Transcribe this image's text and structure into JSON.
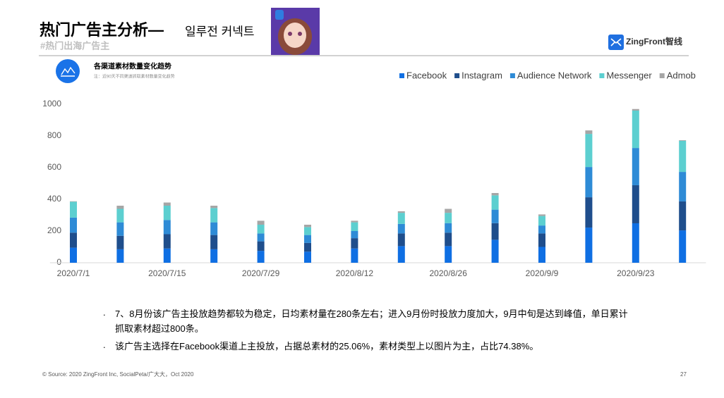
{
  "slide": {
    "title": "热门广告主分析—",
    "title_suffix": "일루전 커넥트",
    "subtitle": "#热门出海广告主",
    "logo": "ZingFront智线",
    "chart_heading": "各渠道素材数量变化趋势",
    "chart_note": "注：近90天不同渠道抓取素材数量变化趋势",
    "bullets": [
      "7、8月份该广告主投放趋势都较为稳定，日均素材量在280条左右；进入9月份时投放力度加大，9月中旬是达到峰值，单日累计抓取素材超过800条。",
      "该广告主选择在Facebook渠道上主投放，占据总素材的25.06%，素材类型上以图片为主，占比74.38%。"
    ],
    "footer": "© Source: 2020 ZingFront Inc, SocialPeta/广大大，Oct 2020",
    "page_number": "27"
  },
  "chart_data": {
    "type": "stacked_bar",
    "categories": [
      "2020/7/1",
      null,
      "2020/7/15",
      null,
      "2020/7/29",
      null,
      "2020/8/12",
      null,
      "2020/8/26",
      null,
      "2020/9/9",
      null,
      "2020/9/23",
      null
    ],
    "series": [
      {
        "name": "Facebook",
        "color": "#0f6fe3",
        "values": [
          95,
          85,
          90,
          85,
          75,
          70,
          90,
          105,
          105,
          145,
          100,
          222,
          249,
          204
        ]
      },
      {
        "name": "Instagram",
        "color": "#1f4e8c",
        "values": [
          95,
          85,
          90,
          90,
          60,
          55,
          65,
          80,
          85,
          105,
          85,
          191,
          240,
          183
        ]
      },
      {
        "name": "Audience Network",
        "color": "#2e8bd6",
        "values": [
          95,
          85,
          90,
          80,
          50,
          50,
          45,
          60,
          60,
          85,
          50,
          191,
          235,
          186
        ]
      },
      {
        "name": "Messenger",
        "color": "#5ccfd0",
        "values": [
          100,
          85,
          90,
          90,
          55,
          50,
          55,
          70,
          65,
          90,
          60,
          209,
          236,
          196
        ]
      },
      {
        "name": "Admob",
        "color": "#a6a6a6",
        "values": [
          3,
          20,
          20,
          15,
          25,
          15,
          10,
          10,
          25,
          15,
          10,
          22,
          10,
          4
        ]
      }
    ],
    "ylim": [
      0,
      1000
    ],
    "yticks": [
      0,
      200,
      400,
      600,
      800,
      1000
    ],
    "grid": false,
    "legend": "top-right"
  }
}
